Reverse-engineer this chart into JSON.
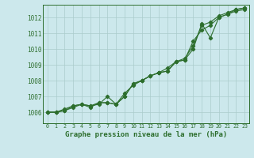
{
  "title": "Graphe pression niveau de la mer (hPa)",
  "bg_color": "#cce8ec",
  "grid_color": "#aacccc",
  "line_color": "#2d6e2d",
  "axis_color": "#2d6e2d",
  "ylim": [
    1005.3,
    1012.8
  ],
  "yticks": [
    1006,
    1007,
    1008,
    1009,
    1010,
    1011,
    1012
  ],
  "xlim": [
    -0.5,
    23.5
  ],
  "series1": [
    1006.0,
    1006.0,
    1006.1,
    1006.3,
    1006.5,
    1006.4,
    1006.5,
    1007.0,
    1006.5,
    1007.0,
    1007.8,
    1008.0,
    1008.3,
    1008.5,
    1008.6,
    1009.2,
    1009.3,
    1010.0,
    1011.6,
    1010.7,
    1012.0,
    1012.2,
    1012.5,
    1012.6
  ],
  "series2": [
    1006.0,
    1006.0,
    1006.1,
    1006.4,
    1006.5,
    1006.3,
    1006.6,
    1006.6,
    1006.5,
    1007.2,
    1007.7,
    1008.0,
    1008.3,
    1008.5,
    1008.6,
    1009.2,
    1009.3,
    1010.5,
    1011.2,
    1011.5,
    1012.0,
    1012.2,
    1012.4,
    1012.5
  ],
  "series3": [
    1006.0,
    1006.0,
    1006.2,
    1006.4,
    1006.5,
    1006.4,
    1006.6,
    1006.6,
    1006.5,
    1007.0,
    1007.8,
    1008.0,
    1008.3,
    1008.5,
    1008.8,
    1009.2,
    1009.4,
    1010.2,
    1011.5,
    1011.7,
    1012.1,
    1012.3,
    1012.5,
    1012.6
  ],
  "x_labels": [
    "0",
    "1",
    "2",
    "3",
    "4",
    "5",
    "6",
    "7",
    "8",
    "9",
    "10",
    "11",
    "12",
    "13",
    "14",
    "15",
    "16",
    "17",
    "18",
    "19",
    "20",
    "21",
    "22",
    "23"
  ],
  "title_fontsize": 6.5,
  "tick_fontsize": 5.5,
  "xtick_fontsize": 4.8,
  "marker_size": 2.2,
  "linewidth": 0.8
}
